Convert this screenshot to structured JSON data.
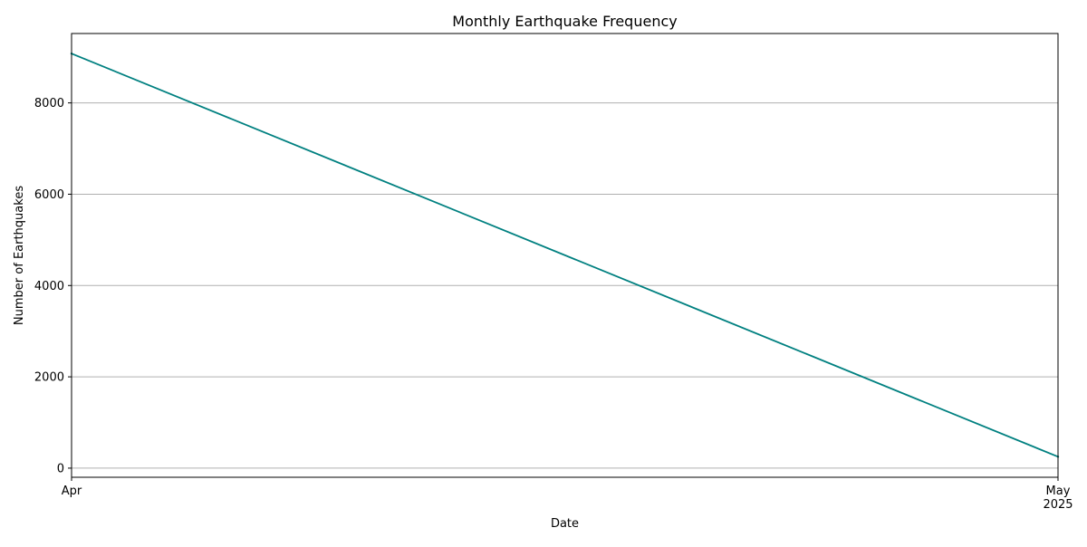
{
  "chart_data": {
    "type": "line",
    "title": "Monthly Earthquake Frequency",
    "xlabel": "Date",
    "ylabel": "Number of Earthquakes",
    "x": [
      "2025-04",
      "2025-05"
    ],
    "series": [
      {
        "values": [
          9080,
          250
        ],
        "color": "#008080"
      }
    ],
    "x_ticks": [
      {
        "month": "Apr",
        "year": ""
      },
      {
        "month": "May",
        "year": "2025"
      }
    ],
    "y_ticks": [
      0,
      2000,
      4000,
      6000,
      8000
    ],
    "ylim": [
      -200,
      9520
    ],
    "grid": {
      "x": false,
      "y": true,
      "color": "#b0b0b0"
    }
  }
}
